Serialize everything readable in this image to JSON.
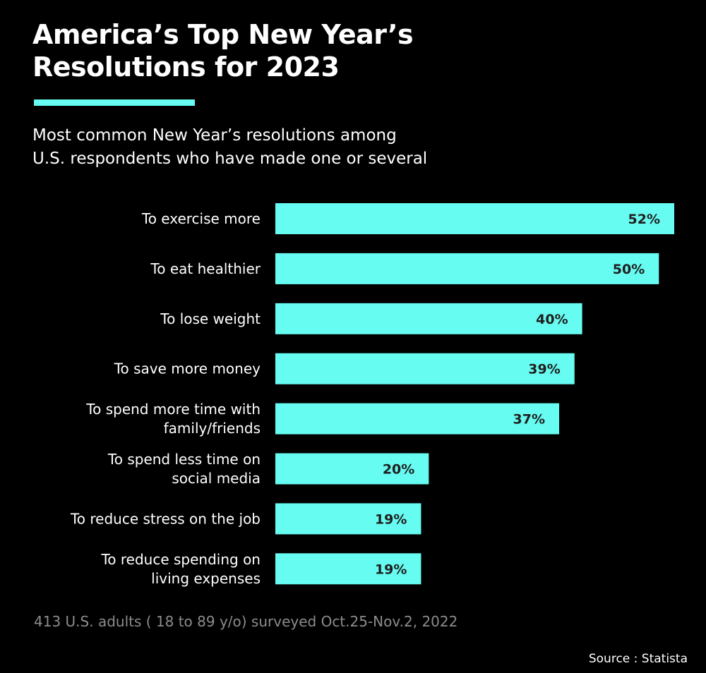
{
  "header": {
    "title_line1": "America’s Top New Year’s",
    "title_line2": "Resolutions for 2023",
    "subtitle_line1": "Most common New Year’s resolutions among",
    "subtitle_line2": "U.S. respondents who have made one or several"
  },
  "footer": {
    "note": "413 U.S. adults ( 18 to 89 y/o) surveyed Oct.25-Nov.2, 2022",
    "source": "Source : Statista"
  },
  "colors": {
    "bar": "#66fcf1",
    "value_label": "#1f1f1f",
    "background": "#000000"
  },
  "chart_data": {
    "type": "bar",
    "orientation": "horizontal",
    "categories": [
      [
        "To exercise more"
      ],
      [
        "To eat healthier"
      ],
      [
        "To lose weight"
      ],
      [
        "To save more money"
      ],
      [
        "To spend more time with",
        "family/friends"
      ],
      [
        "To spend less time on",
        "social media"
      ],
      [
        "To reduce stress on the job"
      ],
      [
        "To reduce spending on",
        "living expenses"
      ]
    ],
    "values": [
      52,
      50,
      40,
      39,
      37,
      20,
      19,
      19
    ],
    "value_labels": [
      "52%",
      "50%",
      "40%",
      "39%",
      "37%",
      "20%",
      "19%",
      "19%"
    ],
    "unit": "%",
    "xlim": [
      0,
      52
    ],
    "grid": false
  }
}
